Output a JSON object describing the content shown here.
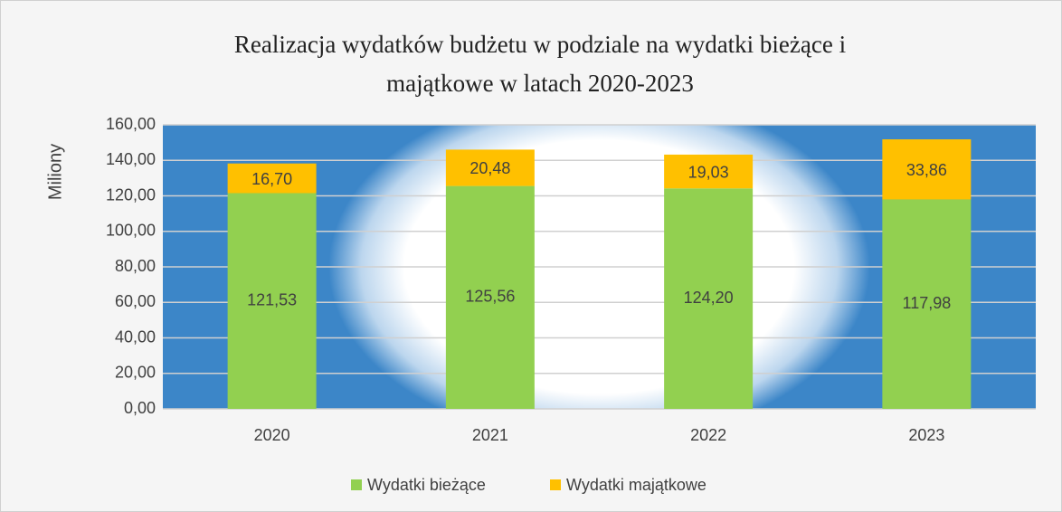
{
  "chart_data": {
    "type": "stacked_bar",
    "title": [
      "Realizacja wydatków budżetu w podziale na wydatki bieżące i",
      "majątkowe w latach 2020-2023"
    ],
    "ylabel": "Miliony",
    "categories": [
      "2020",
      "2021",
      "2022",
      "2023"
    ],
    "series": [
      {
        "name": "Wydatki bieżące",
        "color": "#92d050",
        "values": [
          121.53,
          125.56,
          124.2,
          117.98
        ],
        "value_labels": [
          "121,53",
          "125,56",
          "124,20",
          "117,98"
        ]
      },
      {
        "name": "Wydatki majątkowe",
        "color": "#ffc000",
        "values": [
          16.7,
          20.48,
          19.03,
          33.86
        ],
        "value_labels": [
          "16,70",
          "20,48",
          "19,03",
          "33,86"
        ]
      }
    ],
    "ylim": [
      0,
      160
    ],
    "yticks": [
      {
        "value": 0,
        "label": "0,00"
      },
      {
        "value": 20,
        "label": "20,00"
      },
      {
        "value": 40,
        "label": "40,00"
      },
      {
        "value": 60,
        "label": "60,00"
      },
      {
        "value": 80,
        "label": "80,00"
      },
      {
        "value": 100,
        "label": "100,00"
      },
      {
        "value": 120,
        "label": "120,00"
      },
      {
        "value": 140,
        "label": "140,00"
      },
      {
        "value": 160,
        "label": "160,00"
      }
    ],
    "grid": true,
    "legend": "bottom"
  }
}
